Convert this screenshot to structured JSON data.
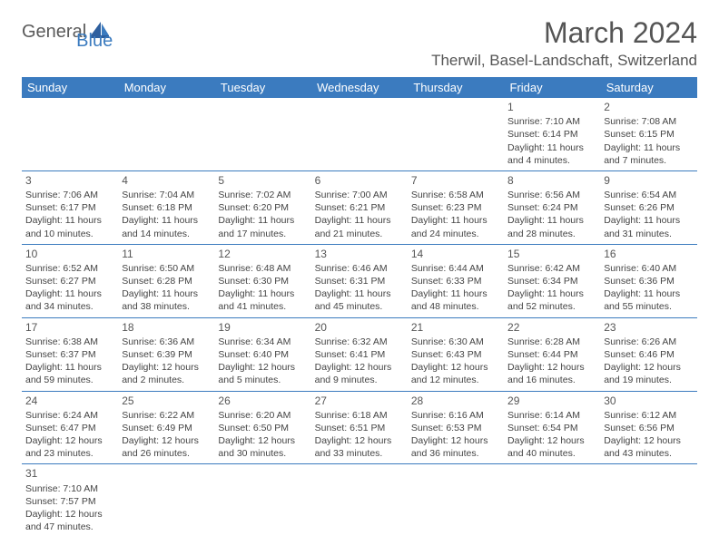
{
  "logo": {
    "text1": "General",
    "text2": "Blue"
  },
  "title": "March 2024",
  "location": "Therwil, Basel-Landschaft, Switzerland",
  "colors": {
    "header_bg": "#3b7bbf",
    "header_text": "#ffffff",
    "border": "#3b7bbf",
    "body_text": "#444",
    "title_text": "#555",
    "logo_gray": "#5a5a5a",
    "logo_blue": "#3b7bbf",
    "background": "#ffffff"
  },
  "calendar": {
    "type": "table",
    "columns": [
      "Sunday",
      "Monday",
      "Tuesday",
      "Wednesday",
      "Thursday",
      "Friday",
      "Saturday"
    ],
    "first_weekday_index": 5,
    "days": [
      {
        "n": "1",
        "sunrise": "Sunrise: 7:10 AM",
        "sunset": "Sunset: 6:14 PM",
        "daylight": "Daylight: 11 hours and 4 minutes."
      },
      {
        "n": "2",
        "sunrise": "Sunrise: 7:08 AM",
        "sunset": "Sunset: 6:15 PM",
        "daylight": "Daylight: 11 hours and 7 minutes."
      },
      {
        "n": "3",
        "sunrise": "Sunrise: 7:06 AM",
        "sunset": "Sunset: 6:17 PM",
        "daylight": "Daylight: 11 hours and 10 minutes."
      },
      {
        "n": "4",
        "sunrise": "Sunrise: 7:04 AM",
        "sunset": "Sunset: 6:18 PM",
        "daylight": "Daylight: 11 hours and 14 minutes."
      },
      {
        "n": "5",
        "sunrise": "Sunrise: 7:02 AM",
        "sunset": "Sunset: 6:20 PM",
        "daylight": "Daylight: 11 hours and 17 minutes."
      },
      {
        "n": "6",
        "sunrise": "Sunrise: 7:00 AM",
        "sunset": "Sunset: 6:21 PM",
        "daylight": "Daylight: 11 hours and 21 minutes."
      },
      {
        "n": "7",
        "sunrise": "Sunrise: 6:58 AM",
        "sunset": "Sunset: 6:23 PM",
        "daylight": "Daylight: 11 hours and 24 minutes."
      },
      {
        "n": "8",
        "sunrise": "Sunrise: 6:56 AM",
        "sunset": "Sunset: 6:24 PM",
        "daylight": "Daylight: 11 hours and 28 minutes."
      },
      {
        "n": "9",
        "sunrise": "Sunrise: 6:54 AM",
        "sunset": "Sunset: 6:26 PM",
        "daylight": "Daylight: 11 hours and 31 minutes."
      },
      {
        "n": "10",
        "sunrise": "Sunrise: 6:52 AM",
        "sunset": "Sunset: 6:27 PM",
        "daylight": "Daylight: 11 hours and 34 minutes."
      },
      {
        "n": "11",
        "sunrise": "Sunrise: 6:50 AM",
        "sunset": "Sunset: 6:28 PM",
        "daylight": "Daylight: 11 hours and 38 minutes."
      },
      {
        "n": "12",
        "sunrise": "Sunrise: 6:48 AM",
        "sunset": "Sunset: 6:30 PM",
        "daylight": "Daylight: 11 hours and 41 minutes."
      },
      {
        "n": "13",
        "sunrise": "Sunrise: 6:46 AM",
        "sunset": "Sunset: 6:31 PM",
        "daylight": "Daylight: 11 hours and 45 minutes."
      },
      {
        "n": "14",
        "sunrise": "Sunrise: 6:44 AM",
        "sunset": "Sunset: 6:33 PM",
        "daylight": "Daylight: 11 hours and 48 minutes."
      },
      {
        "n": "15",
        "sunrise": "Sunrise: 6:42 AM",
        "sunset": "Sunset: 6:34 PM",
        "daylight": "Daylight: 11 hours and 52 minutes."
      },
      {
        "n": "16",
        "sunrise": "Sunrise: 6:40 AM",
        "sunset": "Sunset: 6:36 PM",
        "daylight": "Daylight: 11 hours and 55 minutes."
      },
      {
        "n": "17",
        "sunrise": "Sunrise: 6:38 AM",
        "sunset": "Sunset: 6:37 PM",
        "daylight": "Daylight: 11 hours and 59 minutes."
      },
      {
        "n": "18",
        "sunrise": "Sunrise: 6:36 AM",
        "sunset": "Sunset: 6:39 PM",
        "daylight": "Daylight: 12 hours and 2 minutes."
      },
      {
        "n": "19",
        "sunrise": "Sunrise: 6:34 AM",
        "sunset": "Sunset: 6:40 PM",
        "daylight": "Daylight: 12 hours and 5 minutes."
      },
      {
        "n": "20",
        "sunrise": "Sunrise: 6:32 AM",
        "sunset": "Sunset: 6:41 PM",
        "daylight": "Daylight: 12 hours and 9 minutes."
      },
      {
        "n": "21",
        "sunrise": "Sunrise: 6:30 AM",
        "sunset": "Sunset: 6:43 PM",
        "daylight": "Daylight: 12 hours and 12 minutes."
      },
      {
        "n": "22",
        "sunrise": "Sunrise: 6:28 AM",
        "sunset": "Sunset: 6:44 PM",
        "daylight": "Daylight: 12 hours and 16 minutes."
      },
      {
        "n": "23",
        "sunrise": "Sunrise: 6:26 AM",
        "sunset": "Sunset: 6:46 PM",
        "daylight": "Daylight: 12 hours and 19 minutes."
      },
      {
        "n": "24",
        "sunrise": "Sunrise: 6:24 AM",
        "sunset": "Sunset: 6:47 PM",
        "daylight": "Daylight: 12 hours and 23 minutes."
      },
      {
        "n": "25",
        "sunrise": "Sunrise: 6:22 AM",
        "sunset": "Sunset: 6:49 PM",
        "daylight": "Daylight: 12 hours and 26 minutes."
      },
      {
        "n": "26",
        "sunrise": "Sunrise: 6:20 AM",
        "sunset": "Sunset: 6:50 PM",
        "daylight": "Daylight: 12 hours and 30 minutes."
      },
      {
        "n": "27",
        "sunrise": "Sunrise: 6:18 AM",
        "sunset": "Sunset: 6:51 PM",
        "daylight": "Daylight: 12 hours and 33 minutes."
      },
      {
        "n": "28",
        "sunrise": "Sunrise: 6:16 AM",
        "sunset": "Sunset: 6:53 PM",
        "daylight": "Daylight: 12 hours and 36 minutes."
      },
      {
        "n": "29",
        "sunrise": "Sunrise: 6:14 AM",
        "sunset": "Sunset: 6:54 PM",
        "daylight": "Daylight: 12 hours and 40 minutes."
      },
      {
        "n": "30",
        "sunrise": "Sunrise: 6:12 AM",
        "sunset": "Sunset: 6:56 PM",
        "daylight": "Daylight: 12 hours and 43 minutes."
      },
      {
        "n": "31",
        "sunrise": "Sunrise: 7:10 AM",
        "sunset": "Sunset: 7:57 PM",
        "daylight": "Daylight: 12 hours and 47 minutes."
      }
    ]
  }
}
